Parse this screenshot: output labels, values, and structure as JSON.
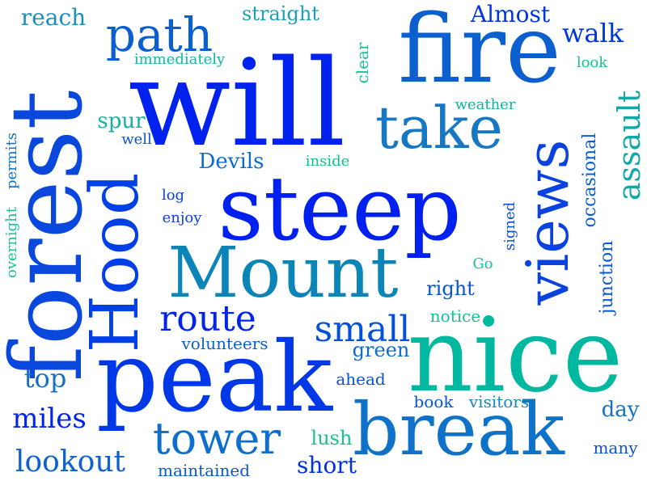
{
  "word_cloud": {
    "words": [
      {
        "text": "will",
        "color": "#0022ee",
        "vertical": false
      },
      {
        "text": "steep",
        "color": "#0020f0",
        "vertical": false
      },
      {
        "text": "nice",
        "color": "#00b8a0",
        "vertical": false
      },
      {
        "text": "peak",
        "color": "#0038e8",
        "vertical": false
      },
      {
        "text": "fire",
        "color": "#0b5fcf",
        "vertical": false
      },
      {
        "text": "forest",
        "color": "#0a48dd",
        "vertical": true
      },
      {
        "text": "Mount",
        "color": "#0b84b8",
        "vertical": false
      },
      {
        "text": "break",
        "color": "#0d72c8",
        "vertical": false
      },
      {
        "text": "views",
        "color": "#0a42e0",
        "vertical": true
      },
      {
        "text": "Hood",
        "color": "#0040e6",
        "vertical": true
      },
      {
        "text": "take",
        "color": "#1677c2",
        "vertical": false
      },
      {
        "text": "path",
        "color": "#0a5fd0",
        "vertical": false
      },
      {
        "text": "tower",
        "color": "#0d6fcb",
        "vertical": false
      },
      {
        "text": "route",
        "color": "#0024e8",
        "vertical": false
      },
      {
        "text": "small",
        "color": "#0550d8",
        "vertical": false
      },
      {
        "text": "lookout",
        "color": "#0d62cd",
        "vertical": false
      },
      {
        "text": "miles",
        "color": "#0024e8",
        "vertical": false
      },
      {
        "text": "top",
        "color": "#1470c6",
        "vertical": false
      },
      {
        "text": "short",
        "color": "#0030e6",
        "vertical": false
      },
      {
        "text": "assault",
        "color": "#11a8a8",
        "vertical": true
      },
      {
        "text": "walk",
        "color": "#0036dd",
        "vertical": false
      },
      {
        "text": "Almost",
        "color": "#0036e0",
        "vertical": false
      },
      {
        "text": "reach",
        "color": "#1a8fc0",
        "vertical": false
      },
      {
        "text": "straight",
        "color": "#1ca0b4",
        "vertical": false
      },
      {
        "text": "Devils",
        "color": "#0c6ccc",
        "vertical": false
      },
      {
        "text": "spur",
        "color": "#11b39c",
        "vertical": false
      },
      {
        "text": "green",
        "color": "#0c6ccc",
        "vertical": false
      },
      {
        "text": "right",
        "color": "#0a52d6",
        "vertical": false
      },
      {
        "text": "lush",
        "color": "#14c292",
        "vertical": false
      },
      {
        "text": "day",
        "color": "#1373c4",
        "vertical": false
      },
      {
        "text": "junction",
        "color": "#0a58d3",
        "vertical": true
      },
      {
        "text": "occasional",
        "color": "#0b5cd0",
        "vertical": true
      },
      {
        "text": "book",
        "color": "#0058d8",
        "vertical": false
      },
      {
        "text": "visitors",
        "color": "#1d84c2",
        "vertical": false
      },
      {
        "text": "volunteers",
        "color": "#0c60ce",
        "vertical": false
      },
      {
        "text": "maintained",
        "color": "#0a58d3",
        "vertical": false
      },
      {
        "text": "ahead",
        "color": "#0a50d8",
        "vertical": false
      },
      {
        "text": "notice",
        "color": "#14c495",
        "vertical": false
      },
      {
        "text": "many",
        "color": "#0a52d6",
        "vertical": false
      },
      {
        "text": "signed",
        "color": "#0a50d8",
        "vertical": true
      },
      {
        "text": "clear",
        "color": "#15c394",
        "vertical": true
      },
      {
        "text": "weather",
        "color": "#11b39c",
        "vertical": false
      },
      {
        "text": "look",
        "color": "#18c09a",
        "vertical": false
      },
      {
        "text": "immediately",
        "color": "#12b8a2",
        "vertical": false
      },
      {
        "text": "permits",
        "color": "#0e72c8",
        "vertical": true
      },
      {
        "text": "overnight",
        "color": "#15c394",
        "vertical": true
      },
      {
        "text": "inside",
        "color": "#16c096",
        "vertical": false
      },
      {
        "text": "log",
        "color": "#0a42dd",
        "vertical": false
      },
      {
        "text": "enjoy",
        "color": "#0a42dd",
        "vertical": false
      },
      {
        "text": "well",
        "color": "#0a52d6",
        "vertical": false
      },
      {
        "text": "Go",
        "color": "#16c096",
        "vertical": false
      }
    ]
  }
}
